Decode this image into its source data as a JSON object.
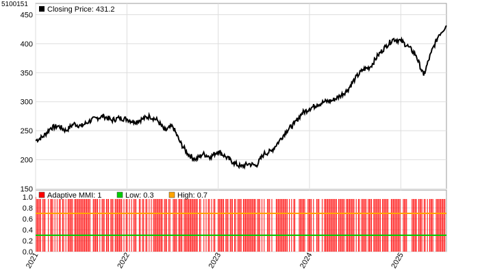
{
  "chart_id": "5100151",
  "chart_data": [
    {
      "type": "line",
      "panel": "price",
      "legend": [
        {
          "label": "Closing Price: 431.2",
          "color": "#000000"
        }
      ],
      "ylim": [
        150,
        460
      ],
      "yticks": [
        150,
        200,
        250,
        300,
        350,
        400,
        450
      ],
      "grid": true,
      "x_range": [
        "2021-01",
        "2025-07"
      ],
      "series": [
        {
          "name": "Closing Price",
          "color": "#000000",
          "points": [
            [
              "2021-01",
              233
            ],
            [
              "2021-02",
              240
            ],
            [
              "2021-03",
              255
            ],
            [
              "2021-04",
              258
            ],
            [
              "2021-05",
              250
            ],
            [
              "2021-06",
              262
            ],
            [
              "2021-07",
              258
            ],
            [
              "2021-08",
              266
            ],
            [
              "2021-09",
              272
            ],
            [
              "2021-10",
              275
            ],
            [
              "2021-11",
              268
            ],
            [
              "2021-12",
              272
            ],
            [
              "2022-01",
              270
            ],
            [
              "2022-02",
              265
            ],
            [
              "2022-03",
              270
            ],
            [
              "2022-04",
              275
            ],
            [
              "2022-05",
              268
            ],
            [
              "2022-06",
              250
            ],
            [
              "2022-07",
              258
            ],
            [
              "2022-08",
              230
            ],
            [
              "2022-09",
              210
            ],
            [
              "2022-10",
              200
            ],
            [
              "2022-11",
              210
            ],
            [
              "2022-12",
              205
            ],
            [
              "2023-01",
              215
            ],
            [
              "2023-02",
              205
            ],
            [
              "2023-03",
              195
            ],
            [
              "2023-04",
              188
            ],
            [
              "2023-05",
              193
            ],
            [
              "2023-06",
              190
            ],
            [
              "2023-07",
              210
            ],
            [
              "2023-08",
              215
            ],
            [
              "2023-09",
              232
            ],
            [
              "2023-10",
              250
            ],
            [
              "2023-11",
              262
            ],
            [
              "2023-12",
              280
            ],
            [
              "2024-01",
              288
            ],
            [
              "2024-02",
              295
            ],
            [
              "2024-03",
              300
            ],
            [
              "2024-04",
              302
            ],
            [
              "2024-05",
              310
            ],
            [
              "2024-06",
              320
            ],
            [
              "2024-07",
              340
            ],
            [
              "2024-08",
              355
            ],
            [
              "2024-09",
              360
            ],
            [
              "2024-10",
              380
            ],
            [
              "2024-11",
              395
            ],
            [
              "2024-12",
              408
            ],
            [
              "2025-01",
              405
            ],
            [
              "2025-02",
              395
            ],
            [
              "2025-03",
              380
            ],
            [
              "2025-04",
              345
            ],
            [
              "2025-05",
              385
            ],
            [
              "2025-06",
              415
            ],
            [
              "2025-07",
              431.2
            ]
          ]
        }
      ]
    },
    {
      "type": "bar",
      "panel": "indicator",
      "legend": [
        {
          "label": "Adaptive MMI: 1",
          "color": "#ff0000"
        },
        {
          "label": "Low: 0.3",
          "color": "#00cc00"
        },
        {
          "label": "High: 0.7",
          "color": "#ffa500"
        }
      ],
      "ylim": [
        0,
        1.0
      ],
      "yticks": [
        0.0,
        0.2,
        0.4,
        0.6,
        0.8,
        1.0
      ],
      "grid": true,
      "series": [
        {
          "name": "Adaptive MMI",
          "color": "#ff0000",
          "value_when_on": 1,
          "fraction_on": 0.75
        },
        {
          "name": "Low",
          "color": "#00cc00",
          "value": 0.3
        },
        {
          "name": "High",
          "color": "#ffa500",
          "value": 0.7
        }
      ]
    }
  ],
  "x_axis": {
    "labels": [
      {
        "date": "2021-01",
        "text": "2021"
      },
      {
        "date": "2022-01",
        "text": "2022"
      },
      {
        "date": "2023-01",
        "text": "2023"
      },
      {
        "date": "2024-01",
        "text": "2024"
      },
      {
        "date": "2025-01",
        "text": "2025"
      }
    ]
  }
}
